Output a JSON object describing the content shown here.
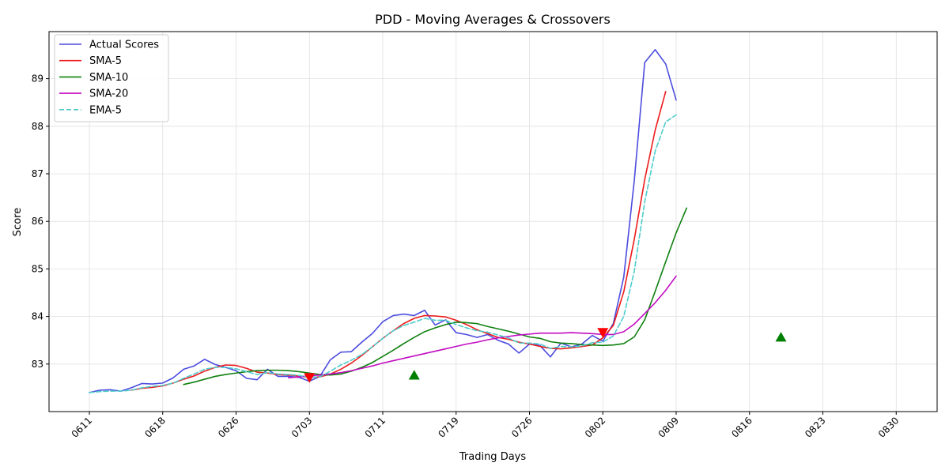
{
  "chart_data": {
    "type": "line",
    "title": "PDD - Moving Averages & Crossovers",
    "xlabel": "Trading Days",
    "ylabel": "Score",
    "x_tick_labels": [
      "0611",
      "0618",
      "0626",
      "0703",
      "0711",
      "0719",
      "0726",
      "0802",
      "0809",
      "0816",
      "0823",
      "0830"
    ],
    "x_tick_index": [
      0,
      7,
      14,
      21,
      28,
      35,
      42,
      49,
      56,
      63,
      70,
      77
    ],
    "ylim": [
      82.0,
      89.99
    ],
    "y_ticks": [
      83,
      84,
      85,
      86,
      87,
      88,
      89
    ],
    "grid": true,
    "legend_position": "upper-left",
    "series": [
      {
        "name": "Actual Scores",
        "color": "#4b4bdf",
        "dash": "solid",
        "start_index": 0,
        "values": [
          82.4,
          82.45,
          82.46,
          82.43,
          82.5,
          82.59,
          82.58,
          82.6,
          82.71,
          82.89,
          82.96,
          83.1,
          82.99,
          82.93,
          82.86,
          82.7,
          82.67,
          82.89,
          82.74,
          82.74,
          82.72,
          82.64,
          82.74,
          83.09,
          83.25,
          83.26,
          83.46,
          83.64,
          83.89,
          84.02,
          84.05,
          84.02,
          84.13,
          83.82,
          83.93,
          83.66,
          83.62,
          83.56,
          83.62,
          83.5,
          83.42,
          83.23,
          83.42,
          83.39,
          83.15,
          83.44,
          83.36,
          83.42,
          83.6,
          83.48,
          83.85,
          84.83,
          86.85,
          89.34,
          89.61,
          89.31,
          88.55
        ]
      },
      {
        "name": "SMA-5",
        "color": "#ec1b1b",
        "dash": "solid",
        "start_index": 4,
        "values": [
          82.45,
          82.49,
          82.51,
          82.54,
          82.6,
          82.68,
          82.75,
          82.85,
          82.93,
          82.98,
          82.97,
          82.91,
          82.83,
          82.81,
          82.78,
          82.77,
          82.75,
          82.72,
          82.73,
          82.79,
          82.89,
          83.02,
          83.18,
          83.36,
          83.54,
          83.7,
          83.85,
          83.96,
          84.02,
          84.01,
          83.99,
          83.92,
          83.83,
          83.72,
          83.64,
          83.56,
          83.52,
          83.46,
          83.42,
          83.37,
          83.33,
          83.32,
          83.34,
          83.37,
          83.4,
          83.55,
          83.81,
          84.52,
          85.62,
          86.88,
          87.92,
          88.73
        ]
      },
      {
        "name": "SMA-10",
        "color": "#0f800f",
        "dash": "solid",
        "start_index": 9,
        "values": [
          82.57,
          82.62,
          82.68,
          82.74,
          82.78,
          82.81,
          82.84,
          82.86,
          82.87,
          82.87,
          82.86,
          82.84,
          82.81,
          82.78,
          82.77,
          82.79,
          82.85,
          82.93,
          83.03,
          83.16,
          83.29,
          83.43,
          83.56,
          83.68,
          83.76,
          83.83,
          83.88,
          83.87,
          83.85,
          83.79,
          83.74,
          83.69,
          83.63,
          83.57,
          83.54,
          83.47,
          83.44,
          83.43,
          83.41,
          83.4,
          83.39,
          83.4,
          83.43,
          83.57,
          83.93,
          84.53,
          85.15,
          85.76,
          86.28
        ]
      },
      {
        "name": "SMA-20",
        "color": "#c20cc2",
        "dash": "solid",
        "start_index": 19,
        "values": [
          82.71,
          82.73,
          82.75,
          82.77,
          82.79,
          82.82,
          82.86,
          82.91,
          82.96,
          83.02,
          83.07,
          83.12,
          83.17,
          83.22,
          83.27,
          83.32,
          83.37,
          83.42,
          83.46,
          83.51,
          83.55,
          83.58,
          83.61,
          83.63,
          83.65,
          83.65,
          83.65,
          83.66,
          83.65,
          83.64,
          83.62,
          83.62,
          83.68,
          83.84,
          84.06,
          84.29,
          84.55,
          84.85
        ]
      },
      {
        "name": "EMA-5",
        "color": "#4fcccc",
        "dash": "dashed",
        "start_index": 0,
        "values": [
          82.4,
          82.42,
          82.43,
          82.43,
          82.45,
          82.5,
          82.53,
          82.55,
          82.6,
          82.7,
          82.79,
          82.89,
          82.93,
          82.93,
          82.9,
          82.84,
          82.78,
          82.82,
          82.79,
          82.78,
          82.76,
          82.72,
          82.73,
          82.85,
          82.98,
          83.08,
          83.2,
          83.36,
          83.54,
          83.7,
          83.81,
          83.88,
          83.96,
          83.92,
          83.92,
          83.83,
          83.76,
          83.7,
          83.67,
          83.61,
          83.55,
          83.44,
          83.44,
          83.42,
          83.33,
          83.37,
          83.36,
          83.38,
          83.45,
          83.46,
          83.59,
          84.0,
          84.95,
          86.41,
          87.48,
          88.09,
          88.24
        ]
      }
    ],
    "markers": [
      {
        "type": "bearish_crossover",
        "symbol": "down-triangle",
        "color": "#ff0000",
        "index": 21,
        "value": 82.72
      },
      {
        "type": "bullish_crossover",
        "symbol": "up-triangle",
        "color": "#008000",
        "index": 31,
        "value": 82.76
      },
      {
        "type": "bearish_crossover",
        "symbol": "down-triangle",
        "color": "#ff0000",
        "index": 49,
        "value": 83.67
      },
      {
        "type": "bullish_crossover",
        "symbol": "up-triangle",
        "color": "#008000",
        "index": 66,
        "value": 83.56
      }
    ]
  }
}
